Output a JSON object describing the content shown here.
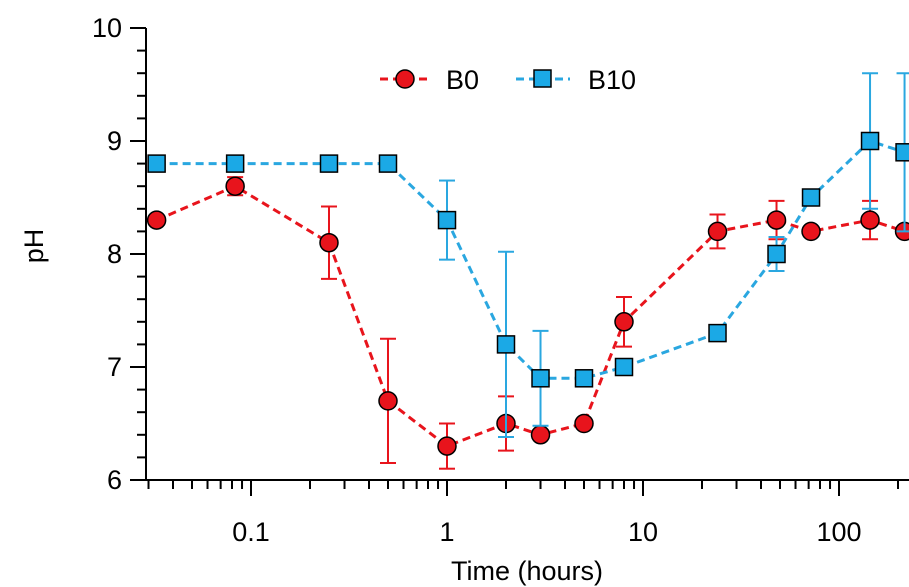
{
  "chart_data": {
    "type": "scatter",
    "xlabel": "Time (hours)",
    "ylabel": "pH",
    "xscale": "log",
    "xlim": [
      0.03,
      220
    ],
    "ylim": [
      6,
      10
    ],
    "xticks": [
      0.1,
      1,
      10,
      100
    ],
    "xtick_labels": [
      "0.1",
      "1",
      "10",
      "100"
    ],
    "yticks": [
      6,
      7,
      8,
      9,
      10
    ],
    "ytick_labels": [
      "6",
      "7",
      "8",
      "9",
      "10"
    ],
    "grid": false,
    "legend_position": "top-center",
    "series": [
      {
        "name": "B0",
        "color": "#e8141c",
        "line_color": "#e8141c",
        "marker": "circle",
        "points": [
          {
            "x": 0.033,
            "y": 8.3
          },
          {
            "x": 0.083,
            "y": 8.6,
            "err": 0.08
          },
          {
            "x": 0.25,
            "y": 8.1,
            "err": 0.32
          },
          {
            "x": 0.5,
            "y": 6.7,
            "err": 0.55
          },
          {
            "x": 1,
            "y": 6.3,
            "err": 0.2
          },
          {
            "x": 2,
            "y": 6.5,
            "err": 0.24
          },
          {
            "x": 3,
            "y": 6.4
          },
          {
            "x": 5,
            "y": 6.5
          },
          {
            "x": 8,
            "y": 7.4,
            "err": 0.22
          },
          {
            "x": 24,
            "y": 8.2,
            "err": 0.15
          },
          {
            "x": 48,
            "y": 8.3,
            "err": 0.17
          },
          {
            "x": 72,
            "y": 8.2
          },
          {
            "x": 144,
            "y": 8.3,
            "err": 0.17
          },
          {
            "x": 216,
            "y": 8.2
          }
        ]
      },
      {
        "name": "B10",
        "color": "#1ba9e6",
        "line_color": "#2aa7e0",
        "marker": "square",
        "points": [
          {
            "x": 0.033,
            "y": 8.8
          },
          {
            "x": 0.083,
            "y": 8.8
          },
          {
            "x": 0.25,
            "y": 8.8
          },
          {
            "x": 0.5,
            "y": 8.8
          },
          {
            "x": 1,
            "y": 8.3,
            "err": 0.35
          },
          {
            "x": 2,
            "y": 7.2,
            "err": 0.82
          },
          {
            "x": 3,
            "y": 6.9,
            "err": 0.42
          },
          {
            "x": 5,
            "y": 6.9
          },
          {
            "x": 8,
            "y": 7.0
          },
          {
            "x": 24,
            "y": 7.3
          },
          {
            "x": 48,
            "y": 8.0,
            "err": 0.15
          },
          {
            "x": 72,
            "y": 8.5
          },
          {
            "x": 144,
            "y": 9.0,
            "err": 0.6
          },
          {
            "x": 216,
            "y": 8.9,
            "err": 0.7
          }
        ]
      }
    ]
  }
}
